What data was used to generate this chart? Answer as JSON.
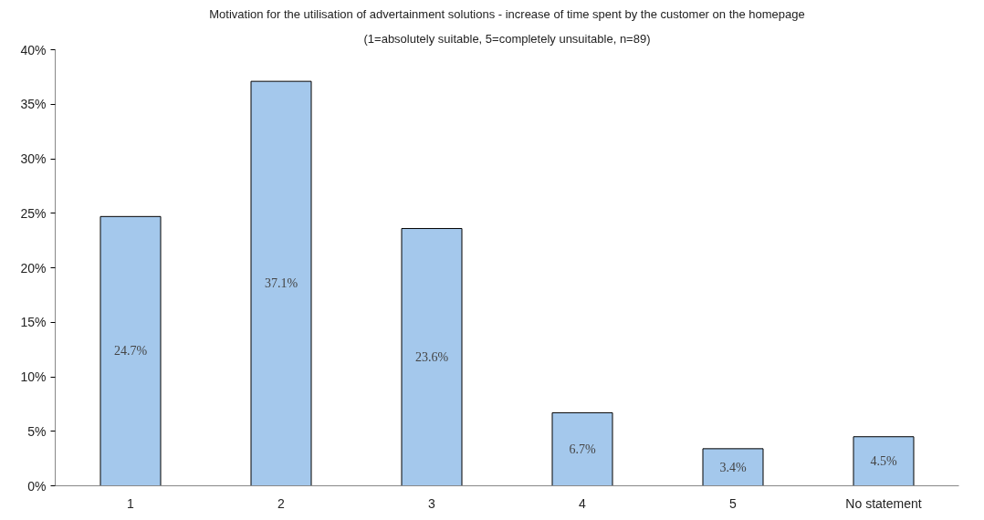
{
  "chart_data": {
    "type": "bar",
    "title": "Motivation for the utilisation of advertainment solutions - increase of time spent by the customer on the homepage",
    "subtitle": "(1=absolutely suitable, 5=completely unsuitable, n=89)",
    "categories": [
      "1",
      "2",
      "3",
      "4",
      "5",
      "No statement"
    ],
    "values": [
      24.7,
      37.1,
      23.6,
      6.7,
      3.4,
      4.5
    ],
    "value_labels": [
      "24.7%",
      "37.1%",
      "23.6%",
      "6.7%",
      "3.4%",
      "4.5%"
    ],
    "color": "#a4c8ec",
    "ylim": [
      0,
      40
    ],
    "yticks": [
      {
        "value": 0,
        "label": "0%"
      },
      {
        "value": 5,
        "label": "5%"
      },
      {
        "value": 10,
        "label": "10%"
      },
      {
        "value": 15,
        "label": "15%"
      },
      {
        "value": 20,
        "label": "20%"
      },
      {
        "value": 25,
        "label": "25%"
      },
      {
        "value": 30,
        "label": "30%"
      },
      {
        "value": 35,
        "label": "35%"
      },
      {
        "value": 40,
        "label": "40%"
      }
    ],
    "grid": false
  }
}
